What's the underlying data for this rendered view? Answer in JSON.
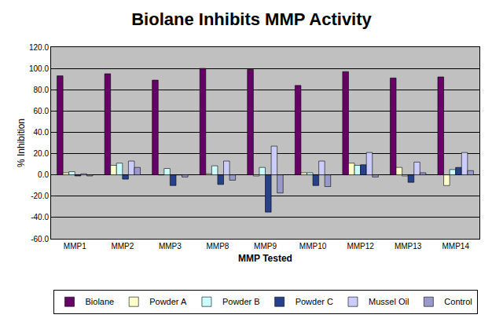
{
  "chart_data": {
    "type": "bar",
    "title": "Biolane Inhibits MMP Activity",
    "x_label": "MMP Tested",
    "y_label": "% Inhibition",
    "categories": [
      "MMP1",
      "MMP2",
      "MMP3",
      "MMP8",
      "MMP9",
      "MMP10",
      "MMP12",
      "MMP13",
      "MMP14"
    ],
    "series": [
      {
        "name": "Biolane",
        "color": "#660066",
        "values": [
          93,
          95,
          89,
          100,
          99,
          84,
          97,
          91,
          92
        ]
      },
      {
        "name": "Powder A",
        "color": "#FFFFCC",
        "values": [
          2,
          9,
          0,
          1,
          -1,
          2,
          11,
          7,
          -10
        ]
      },
      {
        "name": "Powder B",
        "color": "#CCFFFF",
        "values": [
          3,
          11,
          6,
          8.5,
          7,
          2,
          9,
          -1,
          5
        ]
      },
      {
        "name": "Powder C",
        "color": "#27408B",
        "values": [
          -1,
          -4,
          -10,
          -9,
          -35,
          -10,
          9.5,
          -7,
          7
        ]
      },
      {
        "name": "Mussel Oil",
        "color": "#CCCCFF",
        "values": [
          1,
          13,
          0,
          13,
          27,
          13,
          21,
          12,
          21
        ]
      },
      {
        "name": "Control",
        "color": "#9999CC",
        "values": [
          -1,
          7,
          -2,
          -5,
          -17,
          -11,
          -2,
          2,
          4
        ]
      }
    ],
    "ylim": [
      -60,
      120
    ],
    "yticks": [
      {
        "value": -60,
        "label": "-60.0"
      },
      {
        "value": -40,
        "label": "-40.0"
      },
      {
        "value": -20,
        "label": "-20.0"
      },
      {
        "value": 0,
        "label": "0.0"
      },
      {
        "value": 20,
        "label": "20.0"
      },
      {
        "value": 40,
        "label": "40.0"
      },
      {
        "value": 60,
        "label": "60.0"
      },
      {
        "value": 80,
        "label": "80.0"
      },
      {
        "value": 100,
        "label": "100.0"
      },
      {
        "value": 120,
        "label": "120.0"
      }
    ],
    "grid": true,
    "legend": "bottom"
  }
}
